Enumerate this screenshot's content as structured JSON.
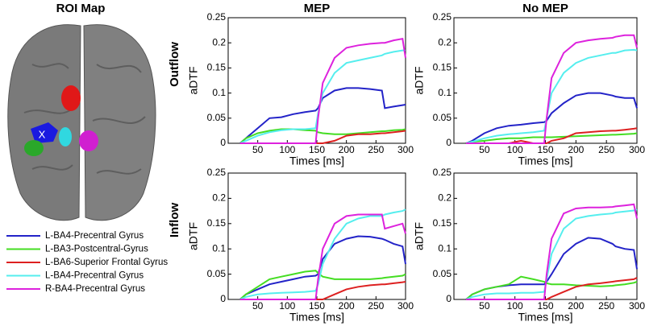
{
  "roi_map": {
    "title": "ROI Map",
    "marker": "X"
  },
  "chart_data": [
    {
      "type": "line",
      "title": "MEP",
      "row_label": "Outflow",
      "ylabel": "aDTF",
      "xlabel": "Times [ms]",
      "xlim": [
        0,
        300
      ],
      "xticks": [
        50,
        100,
        150,
        200,
        250,
        300
      ],
      "ylim": [
        0,
        0.25
      ],
      "yticks": [
        0,
        0.05,
        0.1,
        0.15,
        0.2,
        0.25
      ],
      "x": [
        20,
        30,
        50,
        70,
        90,
        110,
        130,
        148,
        152,
        160,
        180,
        200,
        220,
        240,
        260,
        265,
        280,
        295,
        300
      ],
      "series": [
        {
          "name": "L-BA4-Precentral Gyrus",
          "color": "#2323c8",
          "values": [
            0,
            0.01,
            0.03,
            0.05,
            0.052,
            0.058,
            0.062,
            0.065,
            0.07,
            0.09,
            0.105,
            0.11,
            0.11,
            0.108,
            0.105,
            0.07,
            0.073,
            0.076,
            0.077
          ]
        },
        {
          "name": "L-BA3-Postcentral-Gyrus",
          "color": "#44dd22",
          "values": [
            0,
            0.01,
            0.02,
            0.025,
            0.028,
            0.028,
            0.026,
            0.025,
            0.022,
            0.02,
            0.018,
            0.018,
            0.02,
            0.022,
            0.024,
            0.024,
            0.026,
            0.027,
            0.028
          ]
        },
        {
          "name": "L-BA6-Superior Frontal Gyrus",
          "color": "#dd2020",
          "values": [
            0,
            0,
            0,
            0,
            0,
            0,
            0,
            0,
            0,
            0,
            0.005,
            0.015,
            0.018,
            0.018,
            0.02,
            0.02,
            0.022,
            0.024,
            0.025
          ]
        },
        {
          "name": "L-BA4-Precentral Gyrus",
          "color": "#55eeee",
          "values": [
            0,
            0.005,
            0.015,
            0.022,
            0.026,
            0.028,
            0.028,
            0.03,
            0.06,
            0.1,
            0.14,
            0.16,
            0.165,
            0.17,
            0.175,
            0.178,
            0.182,
            0.185,
            0.185
          ]
        },
        {
          "name": "R-BA4-Precentral Gyrus",
          "color": "#dd22dd",
          "values": [
            0,
            0,
            0,
            0,
            0,
            0,
            0,
            0,
            0.05,
            0.12,
            0.17,
            0.19,
            0.195,
            0.198,
            0.2,
            0.2,
            0.205,
            0.208,
            0.17
          ]
        }
      ]
    },
    {
      "type": "line",
      "title": "No MEP",
      "ylabel": "aDTF",
      "xlabel": "Times [ms]",
      "xlim": [
        0,
        300
      ],
      "xticks": [
        50,
        100,
        150,
        200,
        250,
        300
      ],
      "ylim": [
        0,
        0.25
      ],
      "yticks": [
        0,
        0.05,
        0.1,
        0.15,
        0.2,
        0.25
      ],
      "x": [
        20,
        30,
        50,
        70,
        90,
        110,
        130,
        148,
        152,
        160,
        180,
        200,
        220,
        240,
        260,
        265,
        280,
        295,
        300
      ],
      "series": [
        {
          "values": [
            0,
            0.005,
            0.02,
            0.03,
            0.035,
            0.037,
            0.04,
            0.042,
            0.045,
            0.06,
            0.08,
            0.095,
            0.1,
            0.1,
            0.095,
            0.093,
            0.09,
            0.09,
            0.07
          ]
        },
        {
          "values": [
            0,
            0.003,
            0.005,
            0.008,
            0.01,
            0.01,
            0.012,
            0.012,
            0.012,
            0.012,
            0.013,
            0.014,
            0.015,
            0.016,
            0.017,
            0.017,
            0.018,
            0.019,
            0.02
          ]
        },
        {
          "values": [
            0,
            0,
            0,
            0,
            0,
            0.005,
            0,
            0,
            0,
            0.005,
            0.01,
            0.02,
            0.022,
            0.024,
            0.025,
            0.025,
            0.027,
            0.029,
            0.03
          ]
        },
        {
          "values": [
            0,
            0.003,
            0.01,
            0.015,
            0.018,
            0.02,
            0.022,
            0.025,
            0.05,
            0.1,
            0.14,
            0.16,
            0.17,
            0.175,
            0.18,
            0.18,
            0.185,
            0.186,
            0.185
          ]
        },
        {
          "values": [
            0,
            0,
            0,
            0,
            0,
            0,
            0,
            0,
            0.05,
            0.13,
            0.18,
            0.2,
            0.205,
            0.208,
            0.21,
            0.212,
            0.215,
            0.215,
            0.19
          ]
        }
      ]
    },
    {
      "type": "line",
      "row_label": "Inflow",
      "ylabel": "aDTF",
      "xlabel": "Times [ms]",
      "xlim": [
        0,
        300
      ],
      "xticks": [
        50,
        100,
        150,
        200,
        250,
        300
      ],
      "ylim": [
        0,
        0.25
      ],
      "yticks": [
        0,
        0.05,
        0.1,
        0.15,
        0.2,
        0.25
      ],
      "x": [
        20,
        30,
        50,
        70,
        90,
        110,
        130,
        148,
        152,
        160,
        180,
        200,
        220,
        240,
        260,
        265,
        280,
        295,
        300
      ],
      "series": [
        {
          "values": [
            0,
            0.01,
            0.02,
            0.03,
            0.035,
            0.04,
            0.045,
            0.047,
            0.05,
            0.08,
            0.11,
            0.12,
            0.125,
            0.124,
            0.12,
            0.118,
            0.11,
            0.105,
            0.07
          ]
        },
        {
          "values": [
            0,
            0.01,
            0.025,
            0.04,
            0.045,
            0.05,
            0.055,
            0.057,
            0.052,
            0.045,
            0.04,
            0.04,
            0.04,
            0.04,
            0.042,
            0.043,
            0.045,
            0.047,
            0.05
          ]
        },
        {
          "values": [
            0,
            0,
            0,
            0,
            0,
            0,
            0,
            0,
            0,
            0,
            0.01,
            0.02,
            0.025,
            0.028,
            0.03,
            0.03,
            0.032,
            0.034,
            0.035
          ]
        },
        {
          "values": [
            0,
            0.005,
            0.01,
            0.012,
            0.013,
            0.014,
            0.015,
            0.017,
            0.03,
            0.07,
            0.12,
            0.15,
            0.16,
            0.165,
            0.165,
            0.168,
            0.172,
            0.175,
            0.178
          ]
        },
        {
          "values": [
            0,
            0,
            0,
            0,
            0,
            0,
            0,
            0,
            0.04,
            0.1,
            0.15,
            0.165,
            0.168,
            0.168,
            0.168,
            0.14,
            0.145,
            0.15,
            0.13
          ]
        }
      ]
    },
    {
      "type": "line",
      "ylabel": "aDTF",
      "xlabel": "Times [ms]",
      "xlim": [
        0,
        300
      ],
      "xticks": [
        50,
        100,
        150,
        200,
        250,
        300
      ],
      "ylim": [
        0,
        0.25
      ],
      "yticks": [
        0,
        0.05,
        0.1,
        0.15,
        0.2,
        0.25
      ],
      "x": [
        20,
        30,
        50,
        70,
        90,
        110,
        130,
        148,
        152,
        160,
        180,
        200,
        220,
        240,
        260,
        265,
        280,
        295,
        300
      ],
      "series": [
        {
          "values": [
            0,
            0.01,
            0.02,
            0.025,
            0.028,
            0.03,
            0.03,
            0.03,
            0.035,
            0.05,
            0.09,
            0.11,
            0.122,
            0.12,
            0.11,
            0.105,
            0.1,
            0.098,
            0.06
          ]
        },
        {
          "values": [
            0,
            0.01,
            0.02,
            0.025,
            0.03,
            0.045,
            0.04,
            0.035,
            0.032,
            0.03,
            0.03,
            0.028,
            0.027,
            0.026,
            0.027,
            0.028,
            0.03,
            0.033,
            0.035
          ]
        },
        {
          "values": [
            0,
            0,
            0,
            0,
            0,
            0,
            0,
            0,
            0,
            0.005,
            0.015,
            0.025,
            0.03,
            0.032,
            0.035,
            0.036,
            0.038,
            0.04,
            0.043
          ]
        },
        {
          "values": [
            0,
            0.005,
            0.01,
            0.012,
            0.012,
            0.013,
            0.013,
            0.015,
            0.04,
            0.09,
            0.14,
            0.16,
            0.165,
            0.168,
            0.17,
            0.172,
            0.174,
            0.176,
            0.178
          ]
        },
        {
          "values": [
            0,
            0,
            0,
            0,
            0,
            0,
            0,
            0,
            0.05,
            0.12,
            0.17,
            0.18,
            0.182,
            0.182,
            0.183,
            0.184,
            0.186,
            0.188,
            0.16
          ]
        }
      ]
    }
  ]
}
